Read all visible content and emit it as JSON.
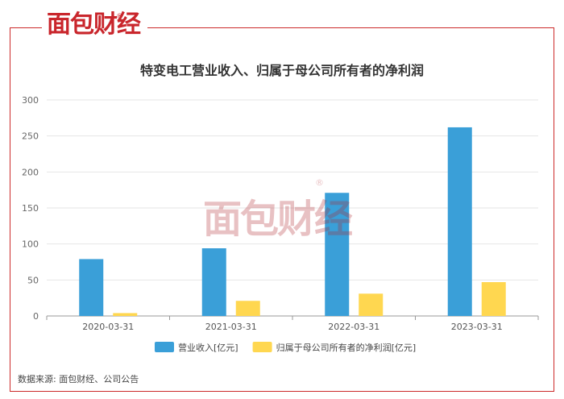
{
  "brand": {
    "name": "面包财经",
    "reg_mark": "®",
    "color": "#c9262c"
  },
  "watermark": {
    "text": "面包财经",
    "reg_mark": "®"
  },
  "source": "数据来源: 面包财经、公司公告",
  "chart_data": {
    "type": "bar",
    "title": "特变电工营业收入、归属于母公司所有者的净利润",
    "categories": [
      "2020-03-31",
      "2021-03-31",
      "2022-03-31",
      "2023-03-31"
    ],
    "series": [
      {
        "name": "营业收入[亿元]",
        "color": "#3a9fd8",
        "values": [
          79,
          94,
          171,
          262
        ]
      },
      {
        "name": "归属于母公司所有者的净利润[亿元]",
        "color": "#ffd750",
        "values": [
          4,
          21,
          31,
          47
        ]
      }
    ],
    "ylim": [
      0,
      300
    ],
    "yticks": [
      0,
      50,
      100,
      150,
      200,
      250,
      300
    ],
    "xlabel": "",
    "ylabel": "",
    "grid": true,
    "legend_position": "bottom"
  }
}
